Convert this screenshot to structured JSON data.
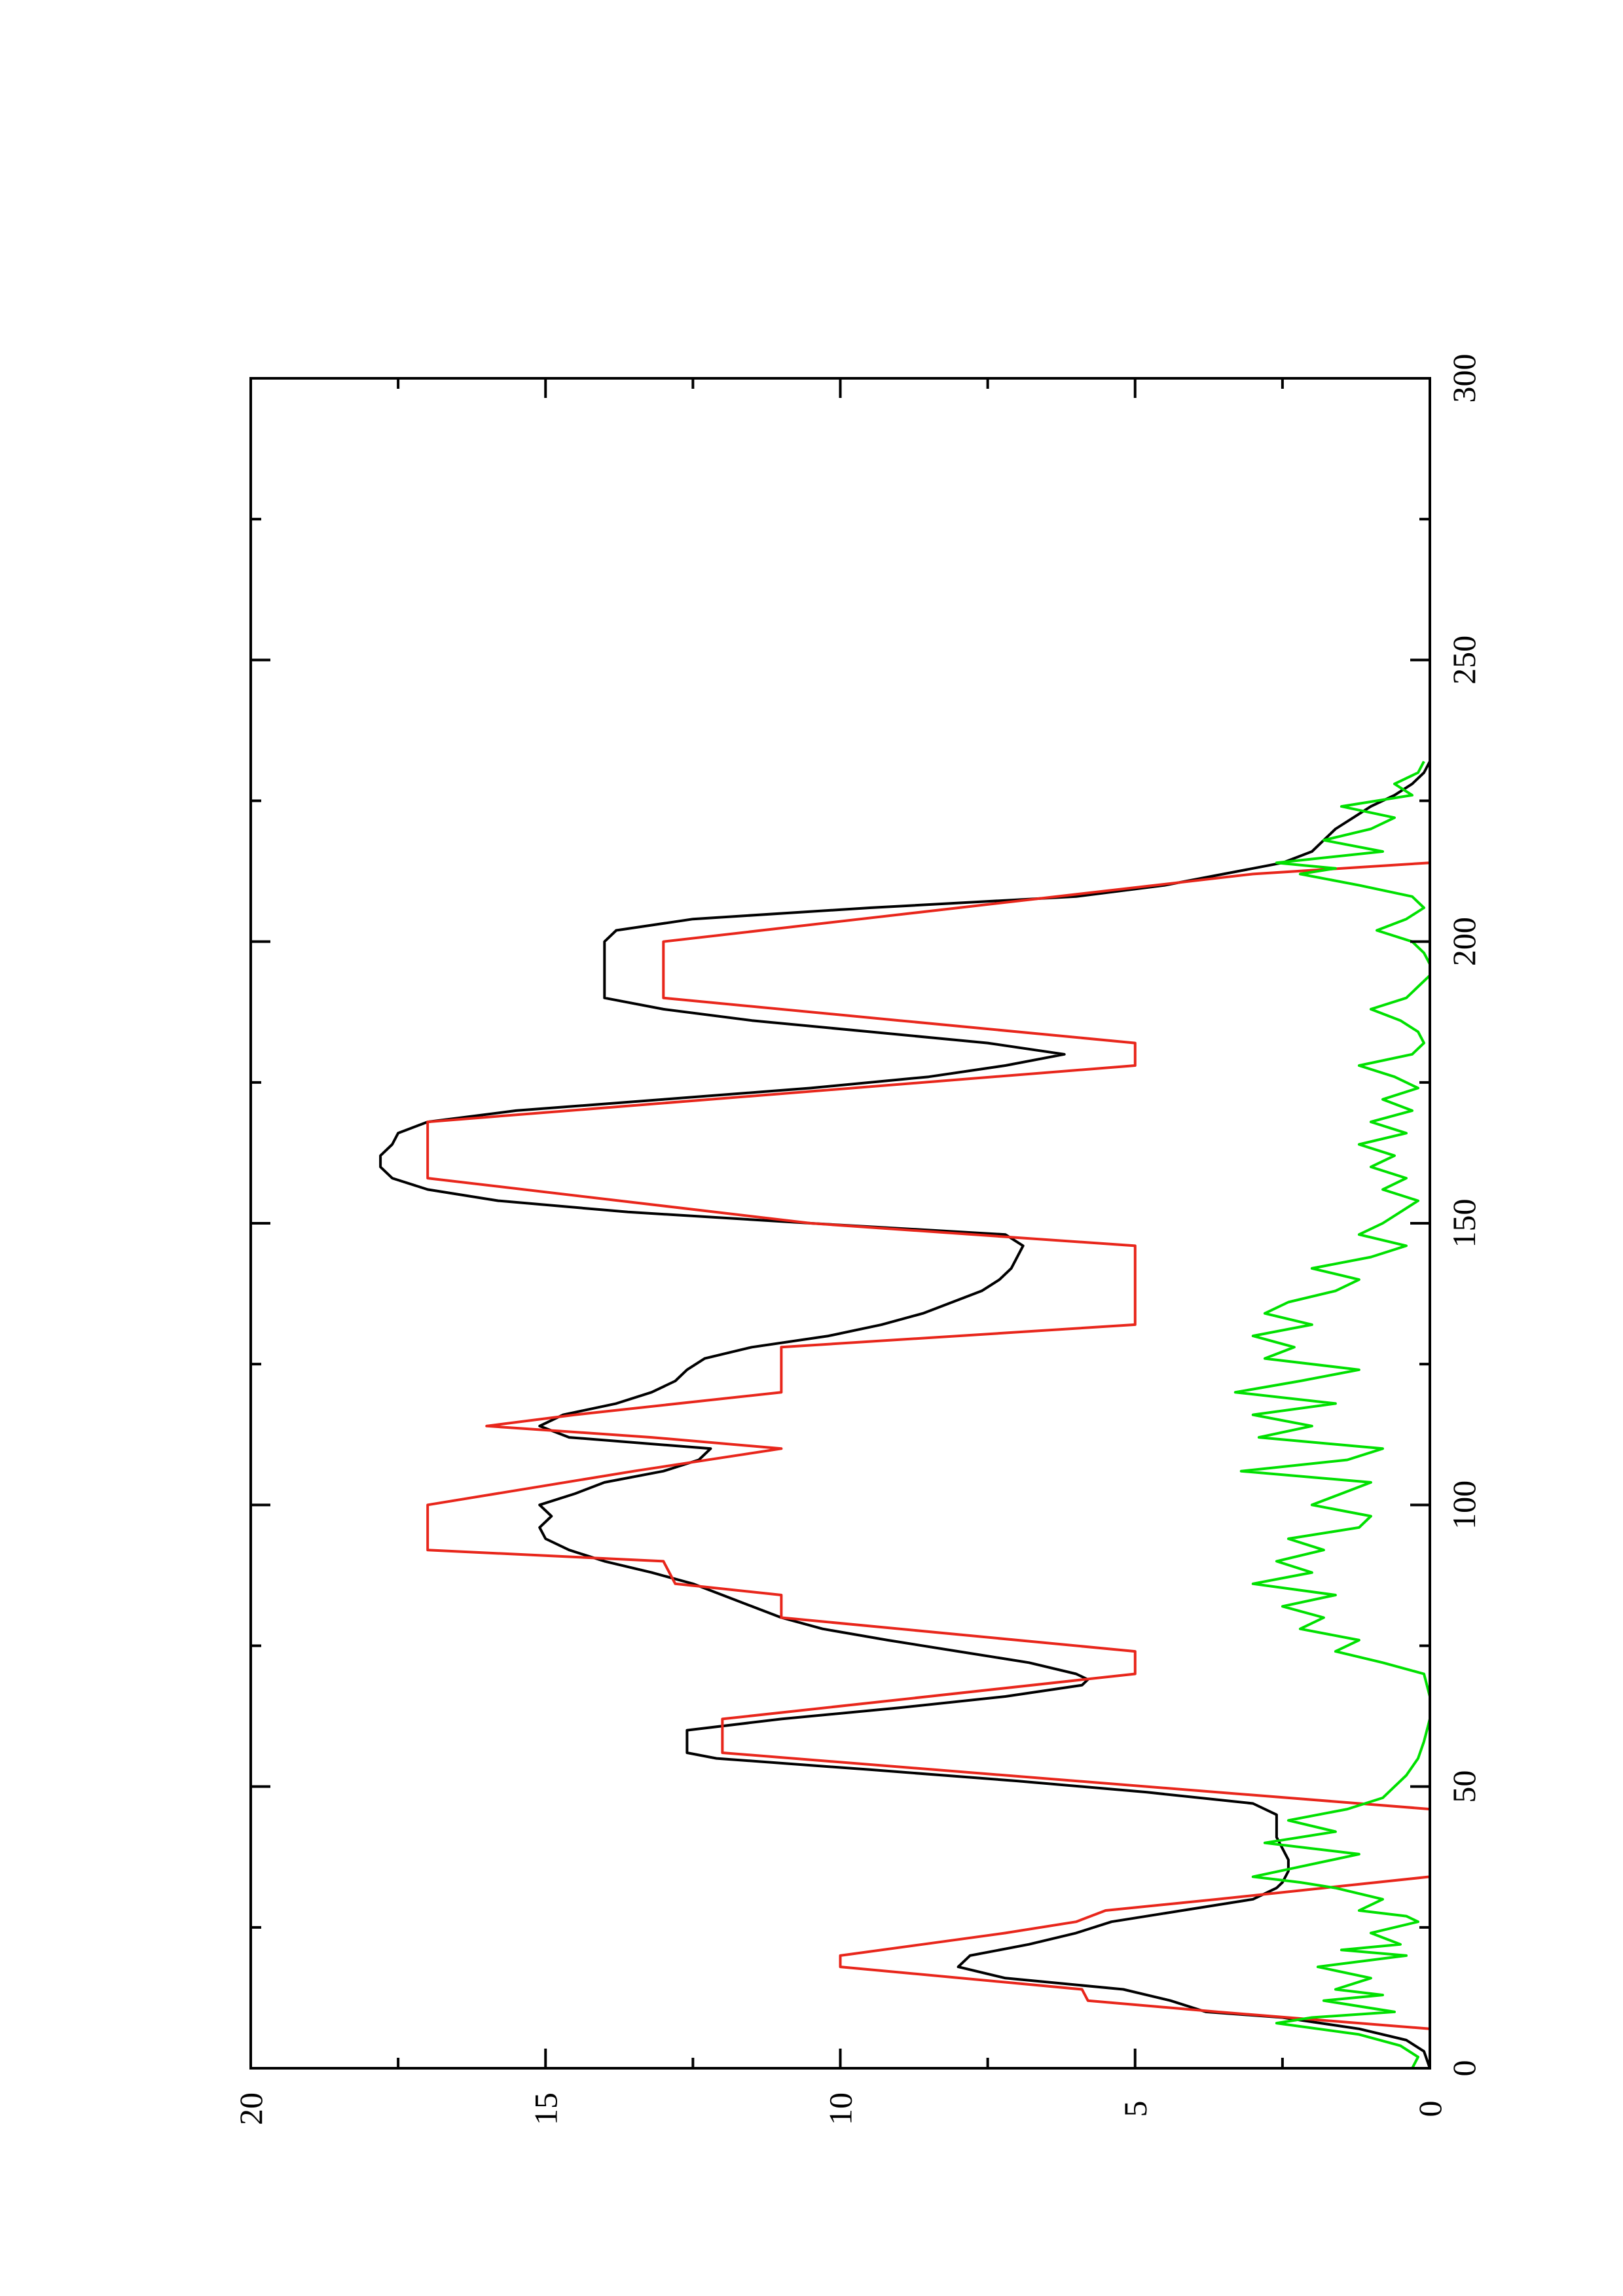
{
  "chart_data": {
    "type": "line",
    "orientation": "rotated-90-ccw",
    "title": "",
    "xlabel": "",
    "ylabel": "",
    "xlim": [
      0,
      300
    ],
    "ylim": [
      0,
      20
    ],
    "x_ticks": [
      "0",
      "50",
      "100",
      "150",
      "200",
      "250",
      "300"
    ],
    "y_ticks": [
      "0",
      "5",
      "10",
      "15",
      "20"
    ],
    "grid": false,
    "legend": "none",
    "series": [
      {
        "color": "#000000",
        "x": [
          0,
          3,
          5,
          7,
          9,
          10,
          12,
          14,
          16,
          18,
          20,
          22,
          24,
          26,
          28,
          30,
          32,
          33,
          35,
          37,
          39,
          41,
          43,
          45,
          47,
          49,
          51,
          53,
          55,
          56,
          57,
          60,
          62,
          64,
          66,
          68,
          69,
          70,
          72,
          74,
          76,
          78,
          80,
          82,
          84,
          86,
          88,
          90,
          92,
          94,
          96,
          98,
          100,
          102,
          104,
          106,
          108,
          110,
          112,
          114,
          116,
          118,
          120,
          122,
          124,
          126,
          128,
          130,
          132,
          134,
          136,
          138,
          140,
          142,
          144,
          146,
          148,
          150,
          152,
          154,
          156,
          158,
          160,
          162,
          164,
          166,
          168,
          170,
          172,
          174,
          176,
          178,
          180,
          182,
          184,
          186,
          188,
          190,
          192,
          194,
          196,
          198,
          200,
          202,
          204,
          206,
          208,
          210,
          212,
          214,
          216,
          218,
          220,
          222,
          224,
          226,
          228,
          230,
          232
        ],
        "y": [
          0,
          0.1,
          0.4,
          1.2,
          2.5,
          3.8,
          4.4,
          5.2,
          7.2,
          8.0,
          7.8,
          6.8,
          6.0,
          5.4,
          4.2,
          3.0,
          2.6,
          2.5,
          2.4,
          2.4,
          2.5,
          2.6,
          2.6,
          2.6,
          3.0,
          4.8,
          7.0,
          9.5,
          12.1,
          12.6,
          12.6,
          12.6,
          11.0,
          9.0,
          7.2,
          5.9,
          5.8,
          6.0,
          6.8,
          8.0,
          9.2,
          10.3,
          11.0,
          11.5,
          12.0,
          12.5,
          13.2,
          14.0,
          14.6,
          15.0,
          15.1,
          14.9,
          15.1,
          14.5,
          14.0,
          13.0,
          12.4,
          12.2,
          14.6,
          15.1,
          14.7,
          13.8,
          13.2,
          12.8,
          12.6,
          12.3,
          11.5,
          10.2,
          9.3,
          8.6,
          8.1,
          7.6,
          7.3,
          7.1,
          7.0,
          6.9,
          7.2,
          10.5,
          13.6,
          15.8,
          17.0,
          17.6,
          17.8,
          17.8,
          17.6,
          17.5,
          17.0,
          15.5,
          13.0,
          10.5,
          8.5,
          7.2,
          6.2,
          7.5,
          9.5,
          11.5,
          13.0,
          14.0,
          14.0,
          14.0,
          14.0,
          14.0,
          14.0,
          13.8,
          12.5,
          9.5,
          6.0,
          4.5,
          3.5,
          2.5,
          2.0,
          1.8,
          1.6,
          1.3,
          1.0,
          0.6,
          0.3,
          0.1,
          0
        ]
      },
      {
        "color": "#e8261b",
        "x": [
          0,
          7,
          10,
          12,
          14,
          18,
          20,
          22,
          24,
          26,
          28,
          30,
          32,
          34,
          44,
          46,
          56,
          60,
          62,
          70,
          74,
          80,
          84,
          86,
          90,
          92,
          100,
          106,
          110,
          112,
          114,
          116,
          120,
          128,
          132,
          146,
          150,
          158,
          168,
          178,
          182,
          186,
          190,
          200,
          212,
          214
        ],
        "y": [
          0,
          0,
          3.6,
          5.8,
          5.9,
          10,
          10,
          8.6,
          7.2,
          6.0,
          5.5,
          3.6,
          1.8,
          0,
          0,
          0,
          12,
          12,
          12,
          5,
          5,
          11,
          11,
          12.8,
          13,
          17,
          17,
          13.5,
          11,
          13.2,
          16,
          14.5,
          11,
          11,
          5,
          5,
          10.5,
          17,
          17,
          5,
          5,
          9,
          13,
          13,
          3,
          0
        ]
      },
      {
        "color": "#00e000",
        "x": [
          0,
          2,
          4,
          6,
          8,
          9,
          10,
          12,
          13,
          14,
          16,
          18,
          20,
          21,
          22,
          24,
          26,
          27,
          28,
          30,
          32,
          33,
          34,
          36,
          38,
          40,
          42,
          44,
          46,
          48,
          50,
          52,
          55,
          58,
          62,
          66,
          70,
          72,
          74,
          76,
          78,
          80,
          82,
          84,
          86,
          88,
          90,
          92,
          94,
          96,
          98,
          100,
          102,
          104,
          106,
          108,
          110,
          112,
          114,
          116,
          118,
          120,
          122,
          124,
          126,
          128,
          130,
          132,
          134,
          136,
          138,
          140,
          142,
          144,
          146,
          148,
          150,
          152,
          154,
          156,
          158,
          160,
          162,
          164,
          166,
          168,
          170,
          172,
          174,
          176,
          178,
          180,
          182,
          184,
          186,
          188,
          190,
          192,
          194,
          196,
          198,
          200,
          202,
          204,
          206,
          208,
          210,
          212,
          213,
          214,
          216,
          218,
          220,
          222,
          224,
          226,
          228,
          230,
          232
        ],
        "y": [
          0.3,
          0.2,
          0.5,
          1.2,
          2.6,
          2.0,
          0.6,
          1.8,
          0.8,
          1.6,
          1.0,
          1.9,
          0.4,
          1.5,
          0.5,
          1.0,
          0.2,
          0.4,
          1.2,
          0.8,
          1.6,
          2.2,
          3.0,
          2.1,
          1.2,
          2.8,
          1.6,
          2.4,
          1.4,
          0.8,
          0.6,
          0.4,
          0.2,
          0.1,
          0,
          0,
          0.1,
          0.8,
          1.6,
          1.2,
          2.2,
          1.8,
          2.5,
          1.6,
          3.0,
          2.0,
          2.6,
          1.8,
          2.4,
          1.2,
          1.0,
          2.0,
          1.5,
          1.0,
          3.2,
          1.4,
          0.8,
          2.9,
          2.0,
          3.0,
          1.6,
          3.3,
          2.2,
          1.2,
          2.8,
          2.3,
          3.0,
          2.0,
          2.8,
          2.4,
          1.6,
          1.2,
          2.0,
          1.0,
          0.4,
          1.2,
          0.8,
          0.5,
          0.2,
          0.8,
          0.4,
          1.0,
          0.6,
          1.2,
          0.4,
          1.0,
          0.3,
          0.8,
          0.2,
          0.6,
          1.2,
          0.3,
          0.1,
          0.2,
          0.5,
          1.0,
          0.4,
          0.2,
          0,
          0,
          0.1,
          0.3,
          0.9,
          0.4,
          0.1,
          0.3,
          1.2,
          2.2,
          1.6,
          2.6,
          0.8,
          1.8,
          1.0,
          0.6,
          1.5,
          0.3,
          0.6,
          0.2,
          0.1
        ]
      }
    ]
  }
}
